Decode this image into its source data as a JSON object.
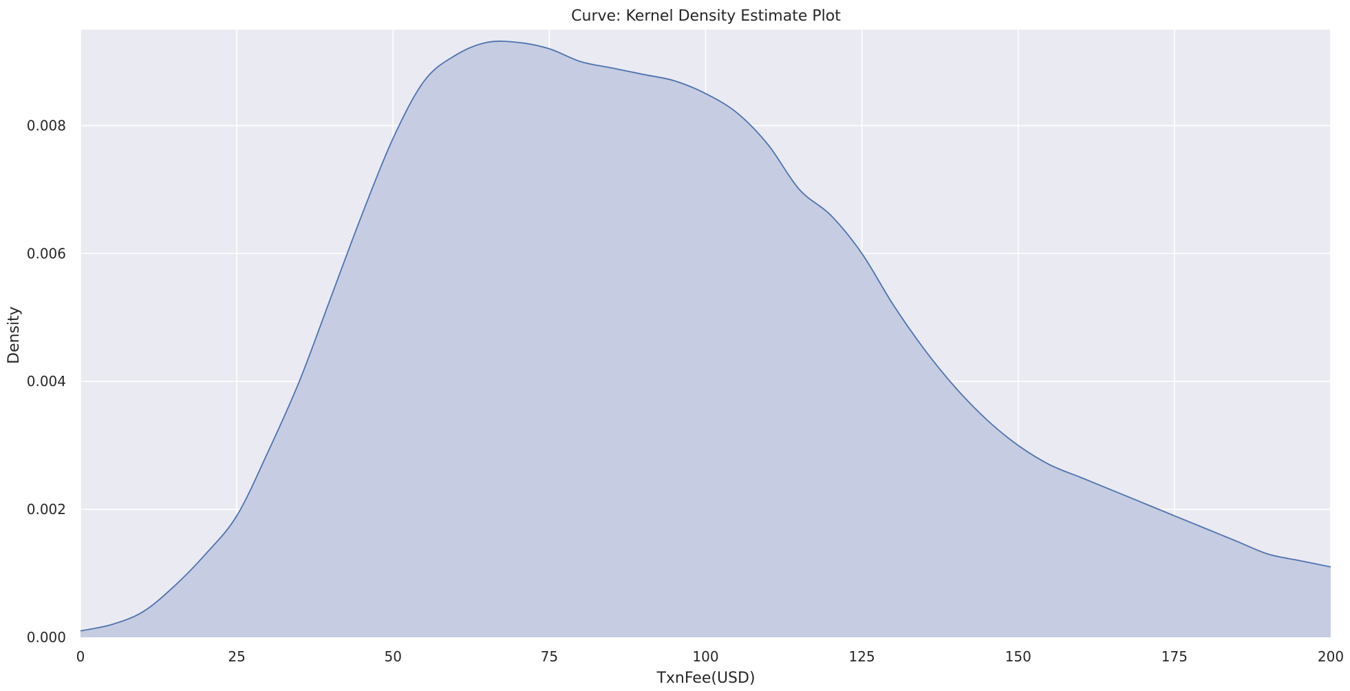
{
  "chart_data": {
    "type": "area",
    "title": "Curve: Kernel Density Estimate Plot",
    "xlabel": "TxnFee(USD)",
    "ylabel": "Density",
    "xlim": [
      0,
      200
    ],
    "ylim": [
      0,
      0.0095
    ],
    "xticks": [
      0,
      25,
      50,
      75,
      100,
      125,
      150,
      175,
      200
    ],
    "xtick_labels": [
      "0",
      "25",
      "50",
      "75",
      "100",
      "125",
      "150",
      "175",
      "200"
    ],
    "yticks": [
      0,
      0.002,
      0.004,
      0.006,
      0.008
    ],
    "ytick_labels": [
      "0.000",
      "0.002",
      "0.004",
      "0.006",
      "0.008"
    ],
    "grid": true,
    "background": "#eaeaf2",
    "line_color": "#4c72b0",
    "fill_color": "#c4cadf",
    "series": [
      {
        "x": [
          0,
          5,
          10,
          15,
          20,
          25,
          30,
          35,
          40,
          45,
          50,
          55,
          60,
          65,
          70,
          75,
          80,
          85,
          90,
          95,
          100,
          105,
          110,
          115,
          120,
          125,
          130,
          135,
          140,
          145,
          150,
          155,
          160,
          165,
          170,
          175,
          180,
          185,
          190,
          195,
          200
        ],
        "y": [
          0.0001,
          0.0002,
          0.0004,
          0.0008,
          0.0013,
          0.0019,
          0.0029,
          0.004,
          0.0053,
          0.0066,
          0.0078,
          0.0087,
          0.0091,
          0.0093,
          0.0093,
          0.0092,
          0.009,
          0.0089,
          0.0088,
          0.0087,
          0.0085,
          0.0082,
          0.0077,
          0.007,
          0.0066,
          0.006,
          0.0052,
          0.0045,
          0.0039,
          0.0034,
          0.003,
          0.0027,
          0.0025,
          0.0023,
          0.0021,
          0.0019,
          0.0017,
          0.0015,
          0.0013,
          0.0012,
          0.0011
        ]
      }
    ]
  }
}
